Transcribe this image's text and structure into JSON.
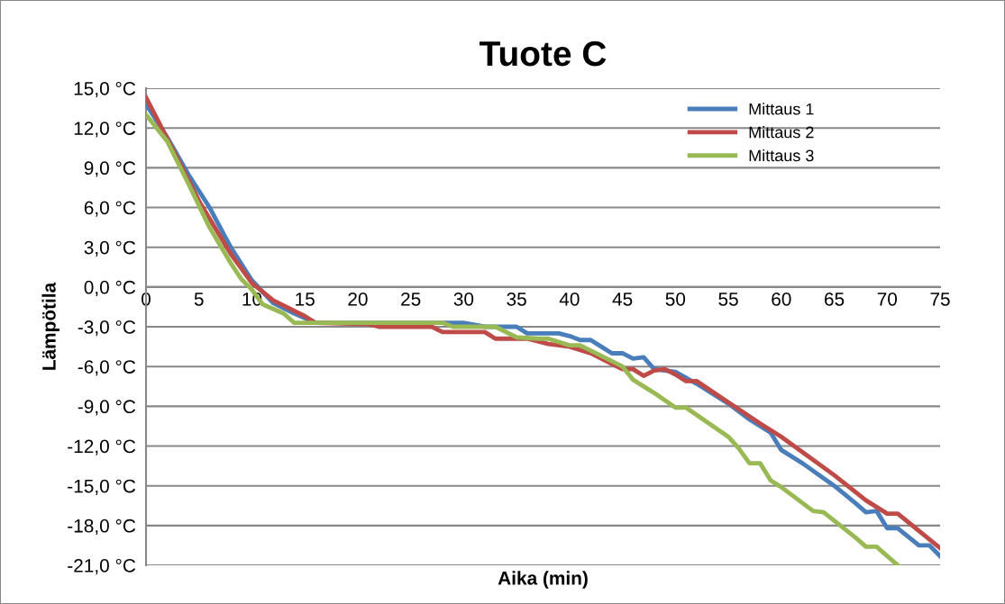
{
  "chart_data": {
    "type": "line",
    "title": "Tuote C",
    "xlabel": "Aika (min)",
    "ylabel": "Lämpötila",
    "xlim": [
      0,
      75
    ],
    "xticks": [
      0,
      5,
      10,
      15,
      20,
      25,
      30,
      35,
      40,
      45,
      50,
      55,
      60,
      65,
      70,
      75
    ],
    "ylim": [
      -21,
      15
    ],
    "yticks": [
      {
        "value": -21,
        "label": "-21,0 °C"
      },
      {
        "value": -18,
        "label": "-18,0 °C"
      },
      {
        "value": -15,
        "label": "-15,0 °C"
      },
      {
        "value": -12,
        "label": "-12,0 °C"
      },
      {
        "value": -9,
        "label": "-9,0 °C"
      },
      {
        "value": -6,
        "label": "-6,0 °C"
      },
      {
        "value": -3,
        "label": "-3,0 °C"
      },
      {
        "value": 0,
        "label": "0,0 °C"
      },
      {
        "value": 3,
        "label": "3,0 °C"
      },
      {
        "value": 6,
        "label": "6,0 °C"
      },
      {
        "value": 9,
        "label": "9,0 °C"
      },
      {
        "value": 12,
        "label": "12,0 °C"
      },
      {
        "value": 15,
        "label": "15,0 °C"
      }
    ],
    "grid": "y",
    "legend": "top right",
    "marker": "none",
    "line_style": "solid",
    "series": [
      {
        "name": "Mittaus 1",
        "color": "#4a7ebb",
        "x": [
          0,
          2,
          4,
          6,
          8,
          10,
          12,
          14,
          16,
          20,
          30,
          32,
          35,
          36,
          39,
          40,
          41,
          42,
          43,
          44,
          45,
          46,
          47,
          48,
          49,
          50,
          52,
          55,
          57,
          59,
          60,
          62,
          65,
          67,
          68,
          69,
          70,
          71,
          73,
          74,
          75
        ],
        "values": [
          13.8,
          11.3,
          8.5,
          6.0,
          3.0,
          0.5,
          -1.2,
          -2.0,
          -2.7,
          -2.7,
          -2.7,
          -3.0,
          -3.0,
          -3.5,
          -3.5,
          -3.7,
          -4.0,
          -4.0,
          -4.5,
          -5.0,
          -5.0,
          -5.4,
          -5.3,
          -6.2,
          -6.3,
          -6.4,
          -7.3,
          -8.8,
          -10.0,
          -11.0,
          -12.3,
          -13.3,
          -15.0,
          -16.3,
          -17.0,
          -16.9,
          -18.2,
          -18.2,
          -19.5,
          -19.5,
          -20.3
        ]
      },
      {
        "name": "Mittaus 2",
        "color": "#be4b48",
        "x": [
          0,
          2,
          5,
          8,
          10,
          12,
          15,
          16,
          21,
          22,
          27,
          28,
          32,
          33,
          36,
          38,
          40,
          42,
          44,
          45,
          46,
          47,
          48,
          49,
          50,
          51,
          52,
          55,
          58,
          60,
          65,
          68,
          70,
          71,
          75
        ],
        "values": [
          14.3,
          11.2,
          6.5,
          2.5,
          0.3,
          -1.0,
          -2.2,
          -2.7,
          -2.8,
          -3.0,
          -3.0,
          -3.4,
          -3.4,
          -3.9,
          -3.9,
          -4.3,
          -4.5,
          -5.0,
          -5.8,
          -6.2,
          -6.2,
          -6.7,
          -6.3,
          -6.2,
          -6.6,
          -7.1,
          -7.1,
          -8.7,
          -10.3,
          -11.3,
          -14.2,
          -16.1,
          -17.1,
          -17.1,
          -19.7
        ]
      },
      {
        "name": "Mittaus 3",
        "color": "#98b954",
        "x": [
          0,
          2,
          4,
          6,
          8,
          9,
          10,
          11,
          13,
          14,
          28,
          29,
          33,
          35,
          37,
          38,
          40,
          41,
          43,
          45,
          46,
          48,
          50,
          51,
          55,
          56,
          57,
          58,
          59,
          60,
          63,
          64,
          67,
          68,
          69,
          71
        ],
        "values": [
          13.0,
          11.0,
          7.8,
          4.5,
          1.8,
          0.6,
          -0.2,
          -1.3,
          -2.0,
          -2.7,
          -2.7,
          -3.0,
          -3.0,
          -3.8,
          -3.9,
          -3.9,
          -4.4,
          -4.4,
          -5.2,
          -6.0,
          -7.0,
          -8.0,
          -9.1,
          -9.1,
          -11.3,
          -12.2,
          -13.3,
          -13.3,
          -14.6,
          -15.1,
          -16.9,
          -17.0,
          -18.9,
          -19.6,
          -19.6,
          -21.0
        ]
      }
    ]
  }
}
